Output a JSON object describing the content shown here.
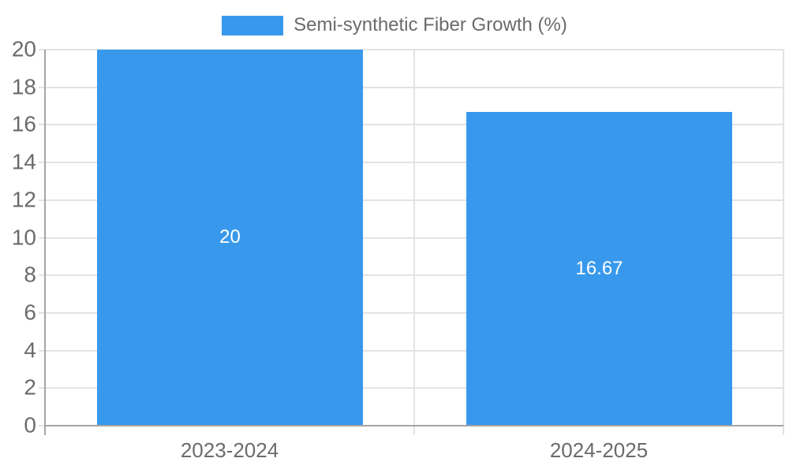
{
  "legend": {
    "label": "Semi-synthetic Fiber Growth (%)"
  },
  "colors": {
    "bar": "#3899EC",
    "grid": "#e3e3e3",
    "axis": "#a5a5a5",
    "text": "#6b6b6b",
    "bar_label": "#ffffff",
    "background": "#ffffff"
  },
  "chart_data": {
    "type": "bar",
    "categories": [
      "2023-2024",
      "2024-2025"
    ],
    "values": [
      20,
      16.67
    ],
    "bar_labels": [
      "20",
      "16.67"
    ],
    "series": [
      {
        "name": "Semi-synthetic Fiber Growth (%)",
        "values": [
          20,
          16.67
        ]
      }
    ],
    "title": "",
    "xlabel": "",
    "ylabel": "",
    "ylim": [
      0,
      20
    ],
    "ytick_step": 2,
    "ytick_labels": [
      "0",
      "2",
      "4",
      "6",
      "8",
      "10",
      "12",
      "14",
      "16",
      "18",
      "20"
    ],
    "grid": true,
    "legend_position": "top-center"
  }
}
